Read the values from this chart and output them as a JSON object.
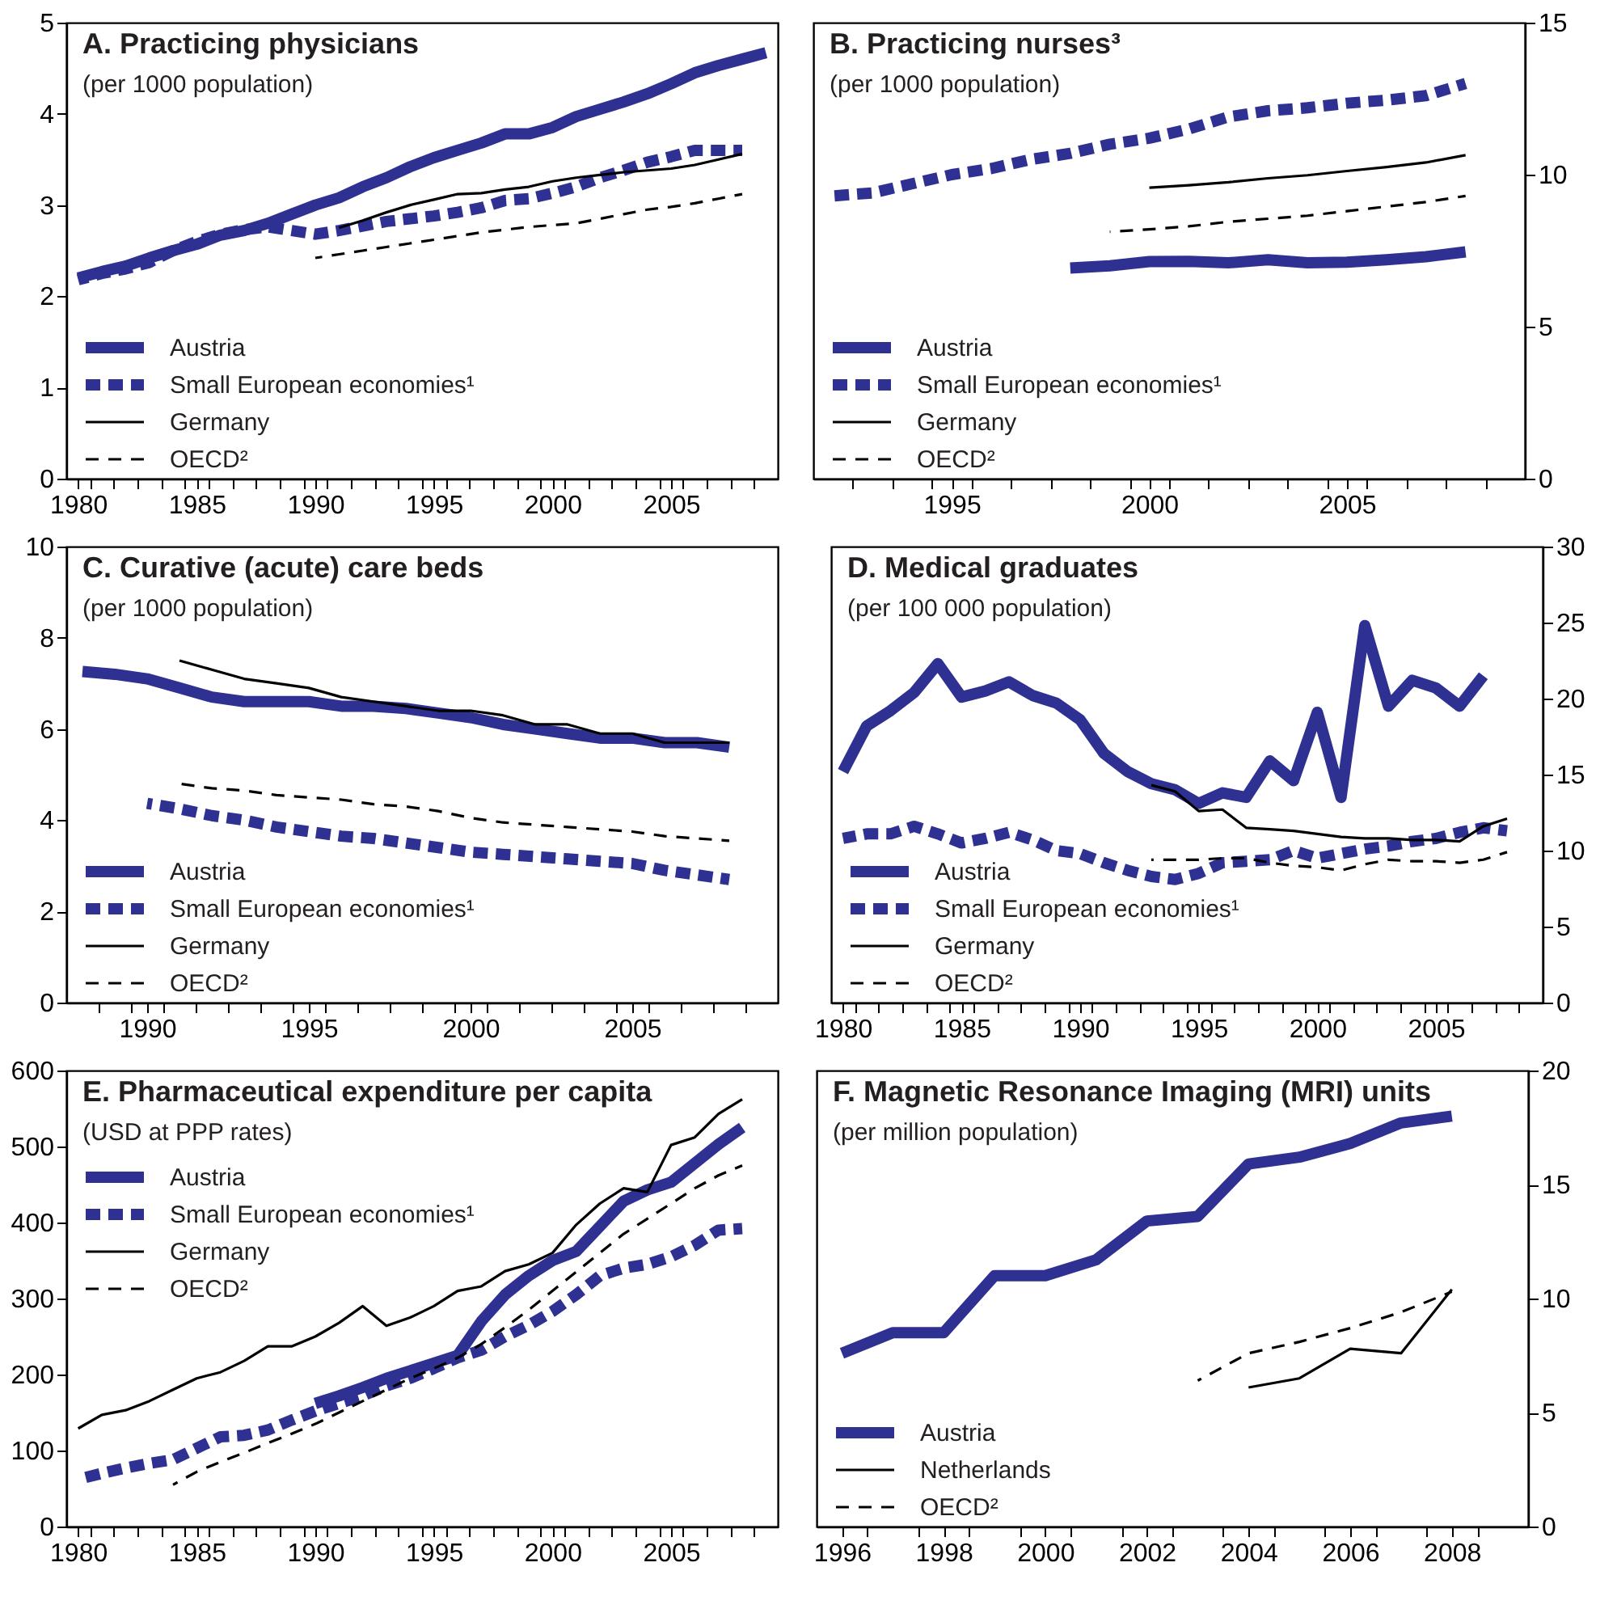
{
  "chart_data": [
    {
      "type": "line",
      "title": "A. Practicing physicians",
      "subtitle": "(per 1000 population)",
      "legend": "bottom left",
      "xlim": [
        1979.5,
        2009.5
      ],
      "ylim": [
        0,
        5
      ],
      "yticks": [
        0,
        1,
        2,
        3,
        4,
        5
      ],
      "xticks": [
        1980,
        1985,
        1990,
        1995,
        2000,
        2005,
        {
          "value": 1980.5,
          "label": null
        },
        {
          "value": 1981.5,
          "label": null
        },
        {
          "value": 1982.5,
          "label": null
        },
        {
          "value": 1983.5,
          "label": null
        },
        {
          "value": 1984.5,
          "label": null
        },
        {
          "value": 1985.5,
          "label": null
        },
        {
          "value": 1986.5,
          "label": null
        },
        {
          "value": 1987.5,
          "label": null
        },
        {
          "value": 1988.5,
          "label": null
        },
        {
          "value": 1989.5,
          "label": null
        },
        {
          "value": 1990.5,
          "label": null
        },
        {
          "value": 1991.5,
          "label": null
        },
        {
          "value": 1992.5,
          "label": null
        },
        {
          "value": 1993.5,
          "label": null
        },
        {
          "value": 1994.5,
          "label": null
        },
        {
          "value": 1995.5,
          "label": null
        },
        {
          "value": 1996.5,
          "label": null
        },
        {
          "value": 1997.5,
          "label": null
        },
        {
          "value": 1998.5,
          "label": null
        },
        {
          "value": 1999.5,
          "label": null
        },
        {
          "value": 2000.5,
          "label": null
        },
        {
          "value": 2001.5,
          "label": null
        },
        {
          "value": 2002.5,
          "label": null
        },
        {
          "value": 2003.5,
          "label": null
        },
        {
          "value": 2004.5,
          "label": null
        },
        {
          "value": 2005.5,
          "label": null
        },
        {
          "value": 2006.5,
          "label": null
        },
        {
          "value": 2007.5,
          "label": null
        },
        {
          "value": 2008.5,
          "label": null
        }
      ],
      "series": [
        {
          "name": "Austria",
          "color": "#2e3192",
          "line_style": "solid",
          "x": [
            1980,
            1981,
            1982,
            1983,
            1984,
            1985,
            1986,
            1987,
            1988,
            1989,
            1990,
            1991,
            1992,
            1993,
            1994,
            1995,
            1996,
            1997,
            1998,
            1999,
            2000,
            2001,
            2002,
            2003,
            2004,
            2005,
            2006,
            2007,
            2008,
            2009
          ],
          "values": [
            2.2,
            2.27,
            2.33,
            2.42,
            2.5,
            2.57,
            2.67,
            2.72,
            2.8,
            2.9,
            3.0,
            3.08,
            3.2,
            3.3,
            3.42,
            3.52,
            3.6,
            3.68,
            3.78,
            3.78,
            3.85,
            3.97,
            4.05,
            4.13,
            4.22,
            4.33,
            4.45,
            4.53,
            4.6,
            4.67
          ]
        },
        {
          "name": "Small European economies¹",
          "color": "#2e3192",
          "line_style": "dashed",
          "x": [
            1980,
            1981,
            1982,
            1983,
            1984,
            1985,
            1986,
            1987,
            1988,
            1989,
            1990,
            1991,
            1992,
            1993,
            1994,
            1995,
            1996,
            1997,
            1998,
            1999,
            2000,
            2001,
            2002,
            2003,
            2004,
            2005,
            2006,
            2007,
            2008
          ],
          "values": [
            2.18,
            2.25,
            2.3,
            2.37,
            2.5,
            2.6,
            2.68,
            2.73,
            2.76,
            2.72,
            2.68,
            2.72,
            2.77,
            2.82,
            2.85,
            2.88,
            2.92,
            2.97,
            3.05,
            3.07,
            3.13,
            3.2,
            3.3,
            3.38,
            3.47,
            3.53,
            3.6,
            3.6,
            3.6
          ]
        },
        {
          "name": "Germany",
          "color": "#000000",
          "line_style": "solid",
          "x": [
            1991,
            1992,
            1993,
            1994,
            1995,
            1996,
            1997,
            1998,
            1999,
            2000,
            2001,
            2002,
            2003,
            2004,
            2005,
            2006,
            2007,
            2008
          ],
          "values": [
            2.75,
            2.83,
            2.92,
            3.0,
            3.06,
            3.12,
            3.13,
            3.17,
            3.2,
            3.26,
            3.3,
            3.33,
            3.36,
            3.38,
            3.4,
            3.44,
            3.5,
            3.56
          ]
        },
        {
          "name": "OECD²",
          "color": "#000000",
          "line_style": "dashed",
          "x": [
            1990,
            1991,
            1992,
            1993,
            1994,
            1995,
            1996,
            1997,
            1998,
            1999,
            2000,
            2001,
            2002,
            2003,
            2004,
            2005,
            2006,
            2007,
            2008
          ],
          "values": [
            2.42,
            2.46,
            2.5,
            2.54,
            2.58,
            2.62,
            2.66,
            2.7,
            2.73,
            2.76,
            2.78,
            2.8,
            2.85,
            2.9,
            2.95,
            2.98,
            3.02,
            3.07,
            3.12
          ]
        }
      ]
    },
    {
      "type": "line",
      "title": "B. Practicing nurses³",
      "subtitle": "(per 1000 population)",
      "legend": "bottom left",
      "xlim": [
        1991.5,
        2009.5
      ],
      "ylim": [
        0,
        15
      ],
      "yticks": [
        0,
        5,
        10,
        15
      ],
      "xticks": [
        1995,
        2000,
        2005,
        {
          "value": 1992.5,
          "label": null
        },
        {
          "value": 1993.5,
          "label": null
        },
        {
          "value": 1994.5,
          "label": null
        },
        {
          "value": 1995.5,
          "label": null
        },
        {
          "value": 1996.5,
          "label": null
        },
        {
          "value": 1997.5,
          "label": null
        },
        {
          "value": 1998.5,
          "label": null
        },
        {
          "value": 1999.5,
          "label": null
        },
        {
          "value": 2000.5,
          "label": null
        },
        {
          "value": 2001.5,
          "label": null
        },
        {
          "value": 2002.5,
          "label": null
        },
        {
          "value": 2003.5,
          "label": null
        },
        {
          "value": 2004.5,
          "label": null
        },
        {
          "value": 2005.5,
          "label": null
        },
        {
          "value": 2006.5,
          "label": null
        },
        {
          "value": 2007.5,
          "label": null
        },
        {
          "value": 2008.5,
          "label": null
        }
      ],
      "series": [
        {
          "name": "Austria",
          "color": "#2e3192",
          "line_style": "solid",
          "x": [
            1998,
            1999,
            2000,
            2001,
            2002,
            2003,
            2004,
            2005,
            2006,
            2007,
            2008
          ],
          "values": [
            6.93,
            7.0,
            7.14,
            7.15,
            7.1,
            7.2,
            7.1,
            7.12,
            7.2,
            7.3,
            7.46
          ]
        },
        {
          "name": "Small European economies¹",
          "color": "#2e3192",
          "line_style": "dashed",
          "x": [
            1992,
            1993,
            1994,
            1995,
            1996,
            1997,
            1998,
            1999,
            2000,
            2001,
            2002,
            2003,
            2004,
            2005,
            2006,
            2007,
            2008
          ],
          "values": [
            9.3,
            9.4,
            9.7,
            10.0,
            10.2,
            10.5,
            10.7,
            11.0,
            11.2,
            11.5,
            11.9,
            12.1,
            12.2,
            12.35,
            12.45,
            12.6,
            13.0
          ]
        },
        {
          "name": "Germany",
          "color": "#000000",
          "line_style": "solid",
          "x": [
            2000,
            2001,
            2002,
            2003,
            2004,
            2005,
            2006,
            2007,
            2008
          ],
          "values": [
            9.57,
            9.65,
            9.75,
            9.88,
            9.98,
            10.12,
            10.25,
            10.4,
            10.64
          ]
        },
        {
          "name": "OECD²",
          "color": "#000000",
          "line_style": "dashed",
          "x": [
            1999,
            2000,
            2001,
            2002,
            2003,
            2004,
            2005,
            2006,
            2007,
            2008
          ],
          "values": [
            8.12,
            8.2,
            8.3,
            8.45,
            8.55,
            8.65,
            8.8,
            8.95,
            9.1,
            9.3
          ]
        }
      ]
    },
    {
      "type": "line",
      "title": "C. Curative (acute) care beds",
      "subtitle": "(per 1000 population)",
      "legend": "bottom left",
      "xlim": [
        1987.5,
        2009.5
      ],
      "ylim": [
        0,
        10
      ],
      "yticks": [
        0,
        2,
        4,
        6,
        8,
        10
      ],
      "xticks": [
        1990,
        1995,
        2000,
        2005,
        {
          "value": 1988.5,
          "label": null
        },
        {
          "value": 1989.5,
          "label": null
        },
        {
          "value": 1990.5,
          "label": null
        },
        {
          "value": 1991.5,
          "label": null
        },
        {
          "value": 1992.5,
          "label": null
        },
        {
          "value": 1993.5,
          "label": null
        },
        {
          "value": 1994.5,
          "label": null
        },
        {
          "value": 1995.5,
          "label": null
        },
        {
          "value": 1996.5,
          "label": null
        },
        {
          "value": 1997.5,
          "label": null
        },
        {
          "value": 1998.5,
          "label": null
        },
        {
          "value": 1999.5,
          "label": null
        },
        {
          "value": 2000.5,
          "label": null
        },
        {
          "value": 2001.5,
          "label": null
        },
        {
          "value": 2002.5,
          "label": null
        },
        {
          "value": 2003.5,
          "label": null
        },
        {
          "value": 2004.5,
          "label": null
        },
        {
          "value": 2005.5,
          "label": null
        },
        {
          "value": 2006.5,
          "label": null
        },
        {
          "value": 2007.5,
          "label": null
        },
        {
          "value": 2008.5,
          "label": null
        }
      ],
      "series": [
        {
          "name": "Austria",
          "color": "#2e3192",
          "line_style": "solid",
          "x": [
            1988,
            1989,
            1990,
            1991,
            1992,
            1993,
            1994,
            1995,
            1996,
            1997,
            1998,
            1999,
            2000,
            2001,
            2002,
            2003,
            2004,
            2005,
            2006,
            2007,
            2008
          ],
          "values": [
            7.26,
            7.2,
            7.1,
            6.9,
            6.7,
            6.6,
            6.6,
            6.6,
            6.5,
            6.5,
            6.45,
            6.35,
            6.25,
            6.1,
            6.0,
            5.9,
            5.8,
            5.8,
            5.7,
            5.7,
            5.6
          ]
        },
        {
          "name": "Small European economies¹",
          "color": "#2e3192",
          "line_style": "dashed",
          "x": [
            1990,
            1991,
            1992,
            1993,
            1994,
            1995,
            1996,
            1997,
            1998,
            1999,
            2000,
            2001,
            2002,
            2003,
            2004,
            2005,
            2006,
            2007,
            2008
          ],
          "values": [
            4.37,
            4.25,
            4.1,
            4.0,
            3.85,
            3.75,
            3.65,
            3.6,
            3.5,
            3.4,
            3.3,
            3.25,
            3.2,
            3.15,
            3.1,
            3.05,
            2.9,
            2.8,
            2.7
          ]
        },
        {
          "name": "Germany",
          "color": "#000000",
          "line_style": "solid",
          "x": [
            1991,
            1992,
            1993,
            1994,
            1995,
            1996,
            1997,
            1998,
            1999,
            2000,
            2001,
            2002,
            2003,
            2004,
            2005,
            2006,
            2007,
            2008
          ],
          "values": [
            7.5,
            7.3,
            7.1,
            7.0,
            6.9,
            6.7,
            6.6,
            6.5,
            6.4,
            6.4,
            6.3,
            6.1,
            6.1,
            5.9,
            5.9,
            5.7,
            5.7,
            5.7
          ]
        },
        {
          "name": "OECD²",
          "color": "#000000",
          "line_style": "dashed",
          "x": [
            1991,
            1992,
            1993,
            1994,
            1995,
            1996,
            1997,
            1998,
            1999,
            2000,
            2001,
            2002,
            2003,
            2004,
            2005,
            2006,
            2007,
            2008
          ],
          "values": [
            4.8,
            4.7,
            4.65,
            4.55,
            4.5,
            4.45,
            4.35,
            4.3,
            4.2,
            4.05,
            3.95,
            3.9,
            3.85,
            3.8,
            3.75,
            3.65,
            3.6,
            3.55
          ]
        }
      ]
    },
    {
      "type": "line",
      "title": "D. Medical graduates",
      "subtitle": "(per 100 000 population)",
      "legend": "bottom left",
      "xlim": [
        1979.5,
        2009.5
      ],
      "ylim": [
        0,
        30
      ],
      "yticks": [
        0,
        5,
        10,
        15,
        20,
        25,
        30
      ],
      "xticks": [
        1980,
        1985,
        1990,
        1995,
        2000,
        2005,
        {
          "value": 1980.5,
          "label": null
        },
        {
          "value": 1981.5,
          "label": null
        },
        {
          "value": 1982.5,
          "label": null
        },
        {
          "value": 1983.5,
          "label": null
        },
        {
          "value": 1984.5,
          "label": null
        },
        {
          "value": 1985.5,
          "label": null
        },
        {
          "value": 1986.5,
          "label": null
        },
        {
          "value": 1987.5,
          "label": null
        },
        {
          "value": 1988.5,
          "label": null
        },
        {
          "value": 1989.5,
          "label": null
        },
        {
          "value": 1990.5,
          "label": null
        },
        {
          "value": 1991.5,
          "label": null
        },
        {
          "value": 1992.5,
          "label": null
        },
        {
          "value": 1993.5,
          "label": null
        },
        {
          "value": 1994.5,
          "label": null
        },
        {
          "value": 1995.5,
          "label": null
        },
        {
          "value": 1996.5,
          "label": null
        },
        {
          "value": 1997.5,
          "label": null
        },
        {
          "value": 1998.5,
          "label": null
        },
        {
          "value": 1999.5,
          "label": null
        },
        {
          "value": 2000.5,
          "label": null
        },
        {
          "value": 2001.5,
          "label": null
        },
        {
          "value": 2002.5,
          "label": null
        },
        {
          "value": 2003.5,
          "label": null
        },
        {
          "value": 2004.5,
          "label": null
        },
        {
          "value": 2005.5,
          "label": null
        },
        {
          "value": 2006.5,
          "label": null
        },
        {
          "value": 2007.5,
          "label": null
        },
        {
          "value": 2008.5,
          "label": null
        }
      ],
      "series": [
        {
          "name": "Austria",
          "color": "#2e3192",
          "line_style": "solid",
          "x": [
            1980,
            1981,
            1982,
            1983,
            1984,
            1985,
            1986,
            1987,
            1988,
            1989,
            1990,
            1991,
            1992,
            1993,
            1994,
            1995,
            1996,
            1997,
            1998,
            1999,
            2000,
            2001,
            2002,
            2003,
            2004,
            2005,
            2006,
            2007
          ],
          "values": [
            15.2,
            18.2,
            19.2,
            20.4,
            22.3,
            20.1,
            20.5,
            21.1,
            20.2,
            19.7,
            18.6,
            16.4,
            15.2,
            14.4,
            14.0,
            13.1,
            13.8,
            13.5,
            15.9,
            14.6,
            19.1,
            13.5,
            24.8,
            19.5,
            21.2,
            20.7,
            19.5,
            21.5
          ]
        },
        {
          "name": "Small European economies¹",
          "color": "#2e3192",
          "line_style": "dashed",
          "x": [
            1980,
            1981,
            1982,
            1983,
            1984,
            1985,
            1986,
            1987,
            1988,
            1989,
            1990,
            1991,
            1992,
            1993,
            1994,
            1995,
            1996,
            1997,
            1998,
            1999,
            2000,
            2001,
            2002,
            2003,
            2004,
            2005,
            2006,
            2007,
            2008
          ],
          "values": [
            10.8,
            11.1,
            11.1,
            11.6,
            11.1,
            10.5,
            10.8,
            11.2,
            10.7,
            10.0,
            9.8,
            9.2,
            8.7,
            8.3,
            8.1,
            8.5,
            9.2,
            9.3,
            9.4,
            10.0,
            9.5,
            9.8,
            10.1,
            10.3,
            10.6,
            10.8,
            11.2,
            11.5,
            11.3
          ]
        },
        {
          "name": "Germany",
          "color": "#000000",
          "line_style": "solid",
          "x": [
            1993,
            1994,
            1995,
            1996,
            1997,
            1998,
            1999,
            2000,
            2001,
            2002,
            2003,
            2004,
            2005,
            2006,
            2007,
            2008
          ],
          "values": [
            14.3,
            13.9,
            12.6,
            12.7,
            11.5,
            11.4,
            11.3,
            11.1,
            10.9,
            10.8,
            10.8,
            10.7,
            10.7,
            10.6,
            11.6,
            12.1
          ]
        },
        {
          "name": "OECD²",
          "color": "#000000",
          "line_style": "dashed",
          "x": [
            1993,
            1994,
            1995,
            1996,
            1997,
            1998,
            1999,
            2000,
            2001,
            2002,
            2003,
            2004,
            2005,
            2006,
            2007,
            2008
          ],
          "values": [
            9.4,
            9.4,
            9.4,
            9.5,
            9.5,
            9.2,
            9.0,
            8.9,
            8.7,
            9.1,
            9.4,
            9.3,
            9.3,
            9.2,
            9.4,
            9.9
          ]
        }
      ]
    },
    {
      "type": "line",
      "title": "E. Pharmaceutical expenditure per capita",
      "subtitle": "(USD at PPP rates)",
      "legend": "top left",
      "xlim": [
        1979.5,
        2009.5
      ],
      "ylim": [
        0,
        600
      ],
      "yticks": [
        0,
        100,
        200,
        300,
        400,
        500,
        600
      ],
      "xticks": [
        1980,
        1985,
        1990,
        1995,
        2000,
        2005,
        {
          "value": 1980.5,
          "label": null
        },
        {
          "value": 1981.5,
          "label": null
        },
        {
          "value": 1982.5,
          "label": null
        },
        {
          "value": 1983.5,
          "label": null
        },
        {
          "value": 1984.5,
          "label": null
        },
        {
          "value": 1985.5,
          "label": null
        },
        {
          "value": 1986.5,
          "label": null
        },
        {
          "value": 1987.5,
          "label": null
        },
        {
          "value": 1988.5,
          "label": null
        },
        {
          "value": 1989.5,
          "label": null
        },
        {
          "value": 1990.5,
          "label": null
        },
        {
          "value": 1991.5,
          "label": null
        },
        {
          "value": 1992.5,
          "label": null
        },
        {
          "value": 1993.5,
          "label": null
        },
        {
          "value": 1994.5,
          "label": null
        },
        {
          "value": 1995.5,
          "label": null
        },
        {
          "value": 1996.5,
          "label": null
        },
        {
          "value": 1997.5,
          "label": null
        },
        {
          "value": 1998.5,
          "label": null
        },
        {
          "value": 1999.5,
          "label": null
        },
        {
          "value": 2000.5,
          "label": null
        },
        {
          "value": 2001.5,
          "label": null
        },
        {
          "value": 2002.5,
          "label": null
        },
        {
          "value": 2003.5,
          "label": null
        },
        {
          "value": 2004.5,
          "label": null
        },
        {
          "value": 2005.5,
          "label": null
        },
        {
          "value": 2006.5,
          "label": null
        },
        {
          "value": 2007.5,
          "label": null
        },
        {
          "value": 2008.5,
          "label": null
        }
      ],
      "series": [
        {
          "name": "Austria",
          "color": "#2e3192",
          "line_style": "solid",
          "x": [
            1990,
            1991,
            1992,
            1993,
            1994,
            1995,
            1996,
            1997,
            1998,
            1999,
            2000,
            2001,
            2002,
            2003,
            2004,
            2005,
            2006,
            2007,
            2008
          ],
          "values": [
            162,
            172,
            183,
            195,
            205,
            215,
            225,
            270,
            305,
            330,
            350,
            362,
            395,
            428,
            443,
            453,
            478,
            503,
            525
          ]
        },
        {
          "name": "Small European economies¹",
          "color": "#2e3192",
          "line_style": "dashed",
          "x": [
            1980,
            1981,
            1982,
            1983,
            1984,
            1985,
            1986,
            1987,
            1988,
            1989,
            1990,
            1991,
            1992,
            1993,
            1994,
            1995,
            1996,
            1997,
            1998,
            1999,
            2000,
            2001,
            2002,
            2003,
            2004,
            2005,
            2006,
            2007,
            2008
          ],
          "values": [
            62,
            70,
            77,
            83,
            88,
            103,
            118,
            120,
            127,
            140,
            152,
            162,
            172,
            185,
            195,
            208,
            222,
            232,
            250,
            265,
            283,
            305,
            330,
            340,
            345,
            355,
            370,
            390,
            392
          ]
        },
        {
          "name": "Germany",
          "color": "#000000",
          "line_style": "solid",
          "x": [
            1980,
            1981,
            1982,
            1983,
            1984,
            1985,
            1986,
            1987,
            1988,
            1989,
            1990,
            1991,
            1992,
            1993,
            1994,
            1995,
            1996,
            1997,
            1998,
            1999,
            2000,
            2001,
            2002,
            2003,
            2004,
            2005,
            2006,
            2007,
            2008
          ],
          "values": [
            129,
            147,
            153,
            165,
            180,
            195,
            203,
            218,
            237,
            237,
            250,
            268,
            290,
            264,
            275,
            290,
            310,
            316,
            336,
            345,
            360,
            397,
            425,
            445,
            440,
            502,
            512,
            543,
            562
          ]
        },
        {
          "name": "OECD²",
          "color": "#000000",
          "line_style": "dashed",
          "x": [
            1984,
            1985,
            1986,
            1987,
            1988,
            1989,
            1990,
            1991,
            1992,
            1993,
            1994,
            1995,
            1996,
            1997,
            1998,
            1999,
            2000,
            2001,
            2002,
            2003,
            2004,
            2005,
            2006,
            2007,
            2008
          ],
          "values": [
            55,
            72,
            85,
            97,
            110,
            122,
            135,
            150,
            165,
            180,
            195,
            208,
            222,
            240,
            262,
            285,
            310,
            335,
            360,
            385,
            405,
            425,
            445,
            462,
            475
          ]
        }
      ]
    },
    {
      "type": "line",
      "title": "F. Magnetic Resonance Imaging (MRI) units",
      "subtitle": "(per million population)",
      "legend": "bottom left",
      "xlim": [
        1995.5,
        2009.5
      ],
      "ylim": [
        0,
        20
      ],
      "yticks": [
        0,
        5,
        10,
        15,
        20
      ],
      "xticks": [
        1996,
        1998,
        2000,
        2002,
        2004,
        2006,
        2008,
        {
          "value": 1996.5,
          "label": null
        },
        {
          "value": 1997.5,
          "label": null
        },
        {
          "value": 1998.5,
          "label": null
        },
        {
          "value": 1999.5,
          "label": null
        },
        {
          "value": 2000.5,
          "label": null
        },
        {
          "value": 2001.5,
          "label": null
        },
        {
          "value": 2002.5,
          "label": null
        },
        {
          "value": 2003.5,
          "label": null
        },
        {
          "value": 2004.5,
          "label": null
        },
        {
          "value": 2005.5,
          "label": null
        },
        {
          "value": 2006.5,
          "label": null
        },
        {
          "value": 2007.5,
          "label": null
        },
        {
          "value": 2008.5,
          "label": null
        }
      ],
      "series": [
        {
          "name": "Austria",
          "color": "#2e3192",
          "line_style": "solid",
          "x": [
            1996,
            1997,
            1998,
            1999,
            2000,
            2001,
            2002,
            2003,
            2004,
            2005,
            2006,
            2007,
            2008
          ],
          "values": [
            7.6,
            8.5,
            8.5,
            11.0,
            11.0,
            11.7,
            13.4,
            13.6,
            15.9,
            16.2,
            16.8,
            17.7,
            18.0
          ]
        },
        {
          "name": "Netherlands",
          "color": "#000000",
          "line_style": "solid",
          "x": [
            2004,
            2005,
            2006,
            2007,
            2008
          ],
          "values": [
            6.1,
            6.5,
            7.8,
            7.6,
            10.4
          ]
        },
        {
          "name": "OECD²",
          "color": "#000000",
          "line_style": "dashed",
          "x": [
            2003,
            2004,
            2005,
            2006,
            2007,
            2008
          ],
          "values": [
            6.4,
            7.6,
            8.1,
            8.7,
            9.4,
            10.3
          ]
        }
      ]
    }
  ]
}
